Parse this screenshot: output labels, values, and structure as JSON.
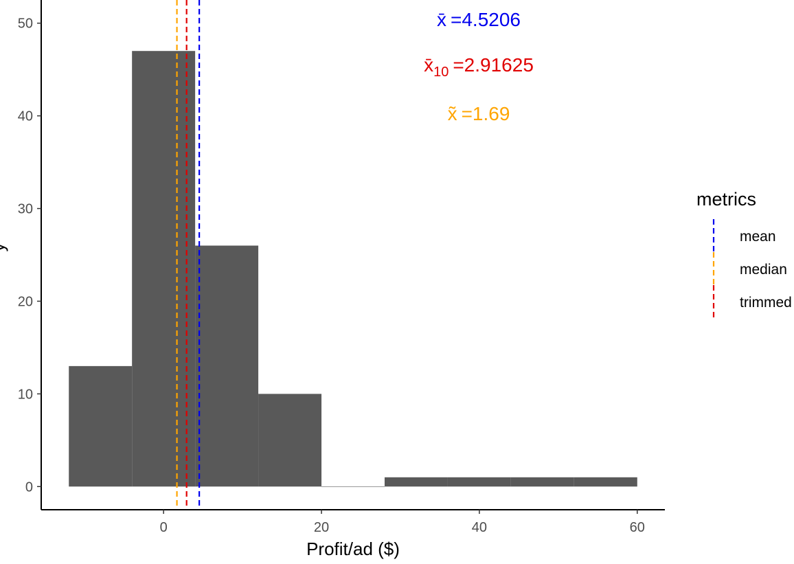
{
  "colors": {
    "bar": "#595959",
    "mean": "#0000ee",
    "median": "#ffa500",
    "trimmed": "#e00000",
    "axis": "#000000",
    "tick_text": "#4d4d4d"
  },
  "chart_data": {
    "type": "bar",
    "subtype": "histogram",
    "title": "",
    "xlabel": "Profit/ad ($)",
    "ylabel": "y",
    "xlim": [
      -15.5,
      63.5
    ],
    "ylim": [
      -2.5,
      52.5
    ],
    "x_ticks": [
      0,
      20,
      40,
      60
    ],
    "y_ticks": [
      0,
      10,
      20,
      30,
      40,
      50
    ],
    "grid": false,
    "bins": [
      {
        "x0": -12,
        "x1": -4,
        "count": 13
      },
      {
        "x0": -4,
        "x1": 4,
        "count": 47
      },
      {
        "x0": 4,
        "x1": 12,
        "count": 26
      },
      {
        "x0": 12,
        "x1": 20,
        "count": 10
      },
      {
        "x0": 20,
        "x1": 28,
        "count": 0
      },
      {
        "x0": 28,
        "x1": 36,
        "count": 1
      },
      {
        "x0": 36,
        "x1": 44,
        "count": 1
      },
      {
        "x0": 44,
        "x1": 52,
        "count": 1
      },
      {
        "x0": 52,
        "x1": 60,
        "count": 1
      }
    ],
    "vlines": [
      {
        "key": "mean",
        "x": 4.5206,
        "linetype": "dashed"
      },
      {
        "key": "trimmed",
        "x": 2.91625,
        "linetype": "dashed"
      },
      {
        "key": "median",
        "x": 1.69,
        "linetype": "dashed"
      }
    ],
    "annotations": [
      {
        "key": "mean",
        "symbol": "x̄",
        "sub": "",
        "text": "=4.5206"
      },
      {
        "key": "trimmed",
        "symbol": "x̄",
        "sub": "10",
        "text": "=2.91625"
      },
      {
        "key": "median",
        "symbol": "x̃",
        "sub": "",
        "text": "=1.69"
      }
    ],
    "legend": {
      "title": "metrics",
      "position": "right",
      "entries": [
        {
          "key": "mean",
          "label": "mean"
        },
        {
          "key": "median",
          "label": "median"
        },
        {
          "key": "trimmed",
          "label": "trimmed"
        }
      ]
    }
  }
}
